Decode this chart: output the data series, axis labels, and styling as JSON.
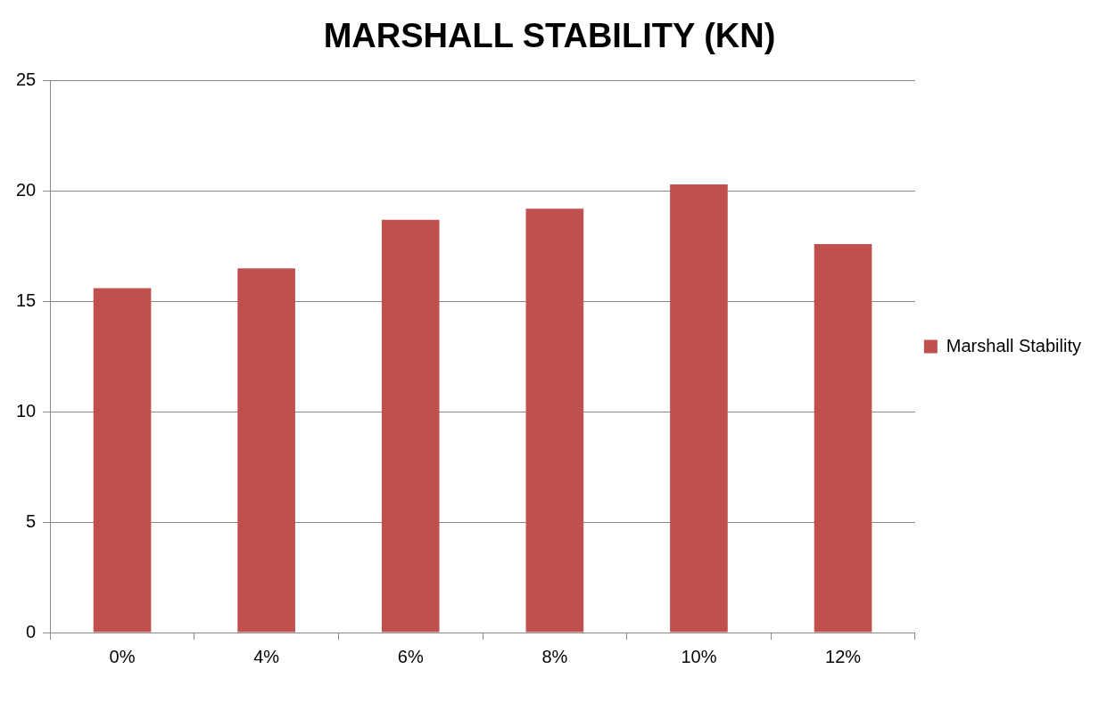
{
  "chart_data": {
    "type": "bar",
    "title": "MARSHALL STABILITY (KN)",
    "categories": [
      "0%",
      "4%",
      "6%",
      "8%",
      "10%",
      "12%"
    ],
    "series": [
      {
        "name": "Marshall Stability",
        "color": "#c0504d",
        "values": [
          15.6,
          16.5,
          18.7,
          19.2,
          20.3,
          17.6
        ]
      }
    ],
    "ylim": [
      0,
      25
    ],
    "yticks": [
      0,
      5,
      10,
      15,
      20,
      25
    ],
    "grid": "y",
    "legend": "right"
  }
}
